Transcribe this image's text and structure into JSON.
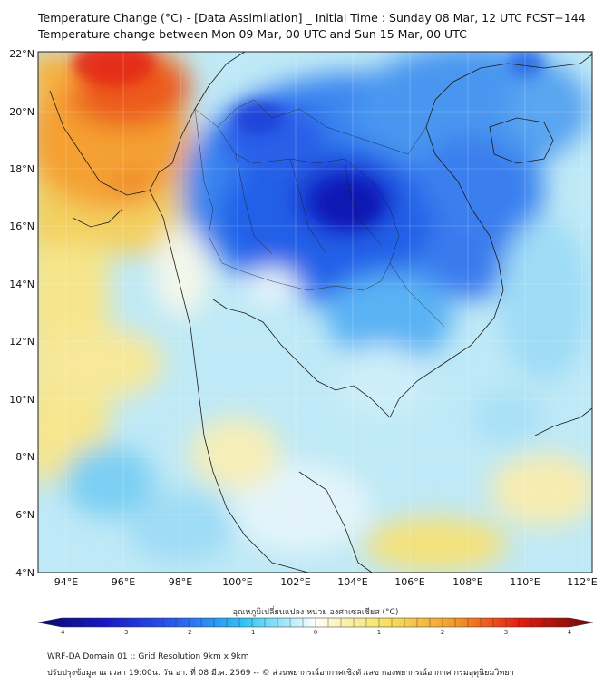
{
  "title": {
    "line1": "Temperature Change (°C) - [Data Assimilation] _ Initial Time : Sunday 08 Mar, 12 UTC FCST+144",
    "line2": "Temperature change between Mon 09 Mar, 00 UTC and Sun 15 Mar, 00 UTC"
  },
  "lat_labels": [
    "22°N",
    "20°N",
    "18°N",
    "16°N",
    "14°N",
    "12°N",
    "10°N",
    "8°N",
    "6°N",
    "4°N"
  ],
  "lon_labels": [
    "94°E",
    "96°E",
    "98°E",
    "100°E",
    "102°E",
    "104°E",
    "106°E",
    "108°E",
    "110°E",
    "112°E"
  ],
  "colorbar": {
    "label": "อุณหภูมิเปลี่ยนแปลง หน่วย องศาเซลเซียส (°C)",
    "ticks": [
      "-4",
      "-3",
      "-2",
      "-1",
      "0",
      "1",
      "2",
      "3",
      "4"
    ],
    "min": -4,
    "max": 4
  },
  "footer": {
    "line1": "WRF-DA Domain 01 :: Grid Resolution 9km x 9km",
    "line2": "ปรับปรุงข้อมูล ณ เวลา 19:00น. วัน อา. ที่ 08 มี.ค. 2569 -- © ส่วนพยากรณ์อากาศเชิงตัวเลข กองพยากรณ์อากาศ กรมอุตุนิยมวิทยา"
  }
}
